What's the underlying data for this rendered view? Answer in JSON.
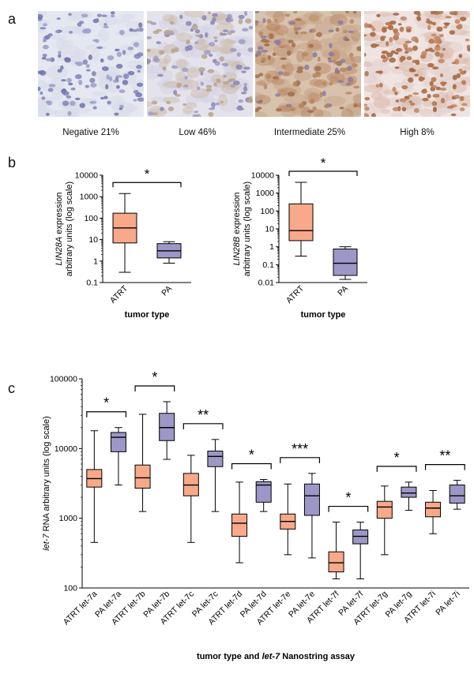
{
  "panel_a": {
    "letter": "a",
    "images": [
      {
        "caption": "Negative  21%",
        "stain": "negative"
      },
      {
        "caption": "Low  46%",
        "stain": "low"
      },
      {
        "caption": "Intermediate  25%",
        "stain": "intermediate"
      },
      {
        "caption": "High  8%",
        "stain": "high"
      }
    ]
  },
  "panel_b_letter": "b",
  "panel_c_letter": "c",
  "colors": {
    "atrt": "#f7a98a",
    "pa": "#9c97c6",
    "stroke": "#000000"
  },
  "chart_data": [
    {
      "id": "lin28a",
      "type": "box",
      "ylabel_gene": "LIN28A",
      "ylabel_rest": " expression",
      "ylabel_line2": "arbitrary units (log scale)",
      "xlabel": "tumor type",
      "y_scale": "log",
      "ylim": [
        0.1,
        10000
      ],
      "ticks": [
        "0.1",
        "1",
        "10",
        "100",
        "1000",
        "10000"
      ],
      "categories": [
        "ATRT",
        "PA"
      ],
      "boxes": [
        {
          "label": "ATRT",
          "group": "atrt",
          "min": 0.3,
          "q1": 7,
          "median": 35,
          "q3": 170,
          "max": 1400
        },
        {
          "label": "PA",
          "group": "pa",
          "min": 0.8,
          "q1": 1.4,
          "median": 3,
          "q3": 6.5,
          "max": 8
        }
      ],
      "significance": [
        {
          "from": 0,
          "to": 1,
          "label": "*"
        }
      ]
    },
    {
      "id": "lin28b",
      "type": "box",
      "ylabel_gene": "LIN28B",
      "ylabel_rest": " expression",
      "ylabel_line2": "arbitrary units (log scale)",
      "xlabel": "tumor type",
      "y_scale": "log",
      "ylim": [
        0.01,
        10000
      ],
      "ticks": [
        "0.01",
        "0.1",
        "1",
        "10",
        "100",
        "1000",
        "10000"
      ],
      "categories": [
        "ATRT",
        "PA"
      ],
      "boxes": [
        {
          "label": "ATRT",
          "group": "atrt",
          "min": 0.3,
          "q1": 2.2,
          "median": 8,
          "q3": 250,
          "max": 4000
        },
        {
          "label": "PA",
          "group": "pa",
          "min": 0.015,
          "q1": 0.025,
          "median": 0.12,
          "q3": 0.75,
          "max": 1.0
        }
      ],
      "significance": [
        {
          "from": 0,
          "to": 1,
          "label": "*"
        }
      ]
    },
    {
      "id": "let7",
      "type": "box",
      "ylabel_gene": "let-7",
      "ylabel_rest": " RNA arbitrary units (log scale)",
      "xlabel_pre": "tumor type and ",
      "xlabel_gene": "let-7",
      "xlabel_post": " Nanostring assay",
      "y_scale": "log",
      "ylim": [
        100,
        100000
      ],
      "ticks": [
        "100",
        "1000",
        "10000",
        "100000"
      ],
      "categories": [
        "ATRT let-7a",
        "PA let-7a",
        "ATRT let-7b",
        "PA let-7b",
        "ATRT let-7c",
        "PA let-7c",
        "ATRT let-7d",
        "PA let-7d",
        "ATRT let-7e",
        "PA let-7e",
        "ATRT let-7f",
        "PA let-7f",
        "ATRT let-7g",
        "PA let-7g",
        "ATRT let-7i",
        "PA let-7i"
      ],
      "boxes": [
        {
          "label": "ATRT let-7a",
          "group": "atrt",
          "min": 450,
          "q1": 2800,
          "median": 3700,
          "q3": 5000,
          "max": 18000
        },
        {
          "label": "PA let-7a",
          "group": "pa",
          "min": 3000,
          "q1": 9000,
          "median": 14500,
          "q3": 17000,
          "max": 20000
        },
        {
          "label": "ATRT let-7b",
          "group": "atrt",
          "min": 1250,
          "q1": 2700,
          "median": 3800,
          "q3": 5800,
          "max": 31000
        },
        {
          "label": "PA let-7b",
          "group": "pa",
          "min": 7000,
          "q1": 13000,
          "median": 20000,
          "q3": 32000,
          "max": 47000
        },
        {
          "label": "ATRT let-7c",
          "group": "atrt",
          "min": 450,
          "q1": 2100,
          "median": 3000,
          "q3": 4400,
          "max": 8000
        },
        {
          "label": "PA let-7c",
          "group": "pa",
          "min": 1250,
          "q1": 5500,
          "median": 7700,
          "q3": 9200,
          "max": 13500
        },
        {
          "label": "ATRT let-7d",
          "group": "atrt",
          "min": 230,
          "q1": 550,
          "median": 850,
          "q3": 1150,
          "max": 3300
        },
        {
          "label": "PA let-7d",
          "group": "pa",
          "min": 1250,
          "q1": 1700,
          "median": 3000,
          "q3": 3350,
          "max": 3600
        },
        {
          "label": "ATRT let-7e",
          "group": "atrt",
          "min": 300,
          "q1": 700,
          "median": 900,
          "q3": 1150,
          "max": 3100
        },
        {
          "label": "PA let-7e",
          "group": "pa",
          "min": 270,
          "q1": 1100,
          "median": 2100,
          "q3": 3100,
          "max": 4400
        },
        {
          "label": "ATRT let-7f",
          "group": "atrt",
          "min": 135,
          "q1": 170,
          "median": 230,
          "q3": 330,
          "max": 880
        },
        {
          "label": "PA let-7f",
          "group": "pa",
          "min": 135,
          "q1": 430,
          "median": 550,
          "q3": 680,
          "max": 880
        },
        {
          "label": "ATRT let-7g",
          "group": "atrt",
          "min": 300,
          "q1": 1000,
          "median": 1450,
          "q3": 1750,
          "max": 2900
        },
        {
          "label": "PA let-7g",
          "group": "pa",
          "min": 1300,
          "q1": 2000,
          "median": 2300,
          "q3": 2800,
          "max": 3300
        },
        {
          "label": "ATRT let-7i",
          "group": "atrt",
          "min": 600,
          "q1": 1050,
          "median": 1400,
          "q3": 1700,
          "max": 2500
        },
        {
          "label": "PA let-7i",
          "group": "pa",
          "min": 1350,
          "q1": 1650,
          "median": 2100,
          "q3": 3000,
          "max": 3500
        }
      ],
      "significance": [
        {
          "from": 0,
          "to": 1,
          "label": "*"
        },
        {
          "from": 2,
          "to": 3,
          "label": "*"
        },
        {
          "from": 4,
          "to": 5,
          "label": "**"
        },
        {
          "from": 6,
          "to": 7,
          "label": "*"
        },
        {
          "from": 8,
          "to": 9,
          "label": "***"
        },
        {
          "from": 10,
          "to": 11,
          "label": "*"
        },
        {
          "from": 12,
          "to": 13,
          "label": "*"
        },
        {
          "from": 14,
          "to": 15,
          "label": "**"
        }
      ]
    }
  ]
}
